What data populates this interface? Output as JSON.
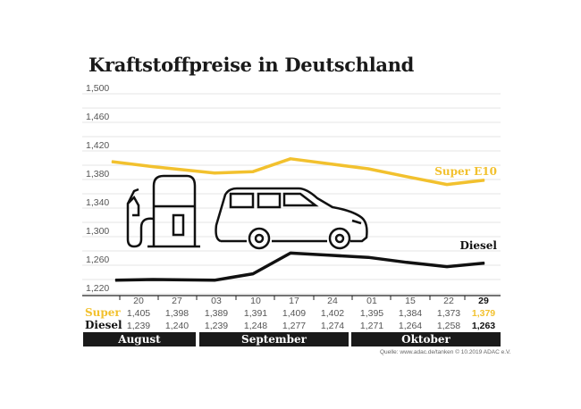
{
  "chart_data": {
    "type": "line",
    "title": "Kraftstoffpreise in Deutschland",
    "categories": [
      "20",
      "27",
      "03",
      "10",
      "17",
      "24",
      "01",
      "15",
      "22",
      "29"
    ],
    "months": [
      {
        "label": "August",
        "span": 2
      },
      {
        "label": "September",
        "span": 4
      },
      {
        "label": "Oktober",
        "span": 4
      }
    ],
    "ylim": [
      1.22,
      1.5
    ],
    "yticks": [
      "1,220",
      "1,260",
      "1,300",
      "1,340",
      "1,380",
      "1,420",
      "1,460",
      "1,500"
    ],
    "grid": true,
    "series": [
      {
        "name": "Super E10",
        "row_label": "Super",
        "color": "#f2c12e",
        "values": [
          1.405,
          1.398,
          1.389,
          1.391,
          1.409,
          1.402,
          1.395,
          1.384,
          1.373,
          1.379
        ],
        "labels": [
          "1,405",
          "1,398",
          "1,389",
          "1,391",
          "1,409",
          "1,402",
          "1,395",
          "1,384",
          "1,373",
          "1,379"
        ]
      },
      {
        "name": "Diesel",
        "row_label": "Diesel",
        "color": "#111111",
        "values": [
          1.239,
          1.24,
          1.239,
          1.248,
          1.277,
          1.274,
          1.271,
          1.264,
          1.258,
          1.263
        ],
        "labels": [
          "1,239",
          "1,240",
          "1,239",
          "1,248",
          "1,277",
          "1,274",
          "1,271",
          "1,264",
          "1,258",
          "1,263"
        ]
      }
    ]
  },
  "source": "Quelle: www.adac.de/tanken   © 10.2019  ADAC e.V.",
  "icons": [
    "fuel-pump-icon",
    "car-icon"
  ]
}
